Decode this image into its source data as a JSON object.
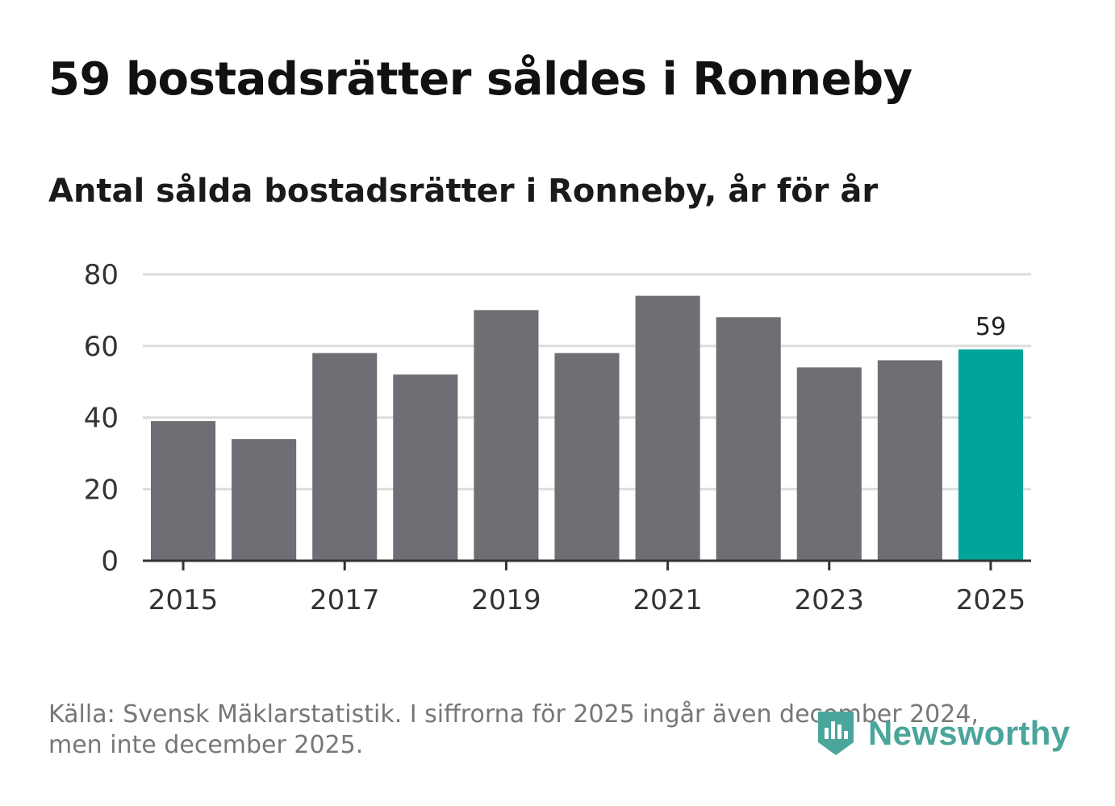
{
  "title": "59 bostadsrätter såldes i Ronneby",
  "subtitle": "Antal sålda bostadsrätter i Ronneby, år för år",
  "source": "Källa: Svensk Mäklarstatistik. I siffrorna för 2025 ingår även december 2024, men inte december 2025.",
  "logo": {
    "text": "Newsworthy",
    "icon": "newsworthy-bar-chart-icon",
    "color": "#4aa59b"
  },
  "colors": {
    "bar": "#6f6e74",
    "highlight": "#00a499",
    "grid": "#dddddd",
    "axis": "#333333"
  },
  "chart_data": {
    "type": "bar",
    "categories": [
      "2015",
      "2016",
      "2017",
      "2018",
      "2019",
      "2020",
      "2021",
      "2022",
      "2023",
      "2024",
      "2025"
    ],
    "values": [
      39,
      34,
      58,
      52,
      70,
      58,
      74,
      68,
      54,
      56,
      59
    ],
    "highlight_index": 10,
    "data_labels": [
      {
        "index": 10,
        "text": "59"
      }
    ],
    "x_tick_labels": [
      "2015",
      "2017",
      "2019",
      "2021",
      "2023",
      "2025"
    ],
    "y_ticks": [
      0,
      20,
      40,
      60,
      80
    ],
    "ylim": [
      0,
      80
    ],
    "grid": true,
    "xlabel": "",
    "ylabel": ""
  }
}
